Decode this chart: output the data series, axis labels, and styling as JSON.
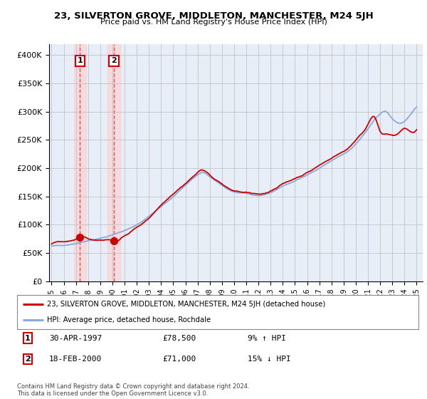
{
  "title": "23, SILVERTON GROVE, MIDDLETON, MANCHESTER, M24 5JH",
  "subtitle": "Price paid vs. HM Land Registry's House Price Index (HPI)",
  "ylabel_ticks": [
    "£0",
    "£50K",
    "£100K",
    "£150K",
    "£200K",
    "£250K",
    "£300K",
    "£350K",
    "£400K"
  ],
  "ytick_values": [
    0,
    50000,
    100000,
    150000,
    200000,
    250000,
    300000,
    350000,
    400000
  ],
  "ylim": [
    0,
    420000
  ],
  "xlim_start": 1994.8,
  "xlim_end": 2025.5,
  "grid_color": "#bbbbbb",
  "bg_color": "#ffffff",
  "plot_bg": "#e8eef8",
  "red_line_color": "#cc0000",
  "blue_line_color": "#88aadd",
  "sale1_x": 1997.33,
  "sale1_y": 78500,
  "sale2_x": 2000.12,
  "sale2_y": 71000,
  "marker_color": "#cc0000",
  "dashed_line_color": "#ee3333",
  "shade_color": "#ffcccc",
  "legend_line1": "23, SILVERTON GROVE, MIDDLETON, MANCHESTER, M24 5JH (detached house)",
  "legend_line2": "HPI: Average price, detached house, Rochdale",
  "table_row1": [
    "1",
    "30-APR-1997",
    "£78,500",
    "9% ↑ HPI"
  ],
  "table_row2": [
    "2",
    "18-FEB-2000",
    "£71,000",
    "15% ↓ HPI"
  ],
  "footer": "Contains HM Land Registry data © Crown copyright and database right 2024.\nThis data is licensed under the Open Government Licence v3.0.",
  "xtick_years": [
    1995,
    1996,
    1997,
    1998,
    1999,
    2000,
    2001,
    2002,
    2003,
    2004,
    2005,
    2006,
    2007,
    2008,
    2009,
    2010,
    2011,
    2012,
    2013,
    2014,
    2015,
    2016,
    2017,
    2018,
    2019,
    2020,
    2021,
    2022,
    2023,
    2024,
    2025
  ],
  "hpi_anchors_x": [
    1995,
    1996,
    1997,
    1998,
    1999,
    2000,
    2001,
    2002,
    2003,
    2004,
    2005,
    2006,
    2007,
    2007.5,
    2008,
    2009,
    2009.5,
    2010,
    2011,
    2012,
    2013,
    2014,
    2015,
    2016,
    2017,
    2018,
    2019,
    2019.5,
    2020,
    2021,
    2021.5,
    2022,
    2022.5,
    2023,
    2023.5,
    2024,
    2024.5,
    2025
  ],
  "hpi_anchors_y": [
    62000,
    64000,
    67000,
    72000,
    76000,
    82000,
    90000,
    100000,
    115000,
    132000,
    150000,
    170000,
    188000,
    192000,
    185000,
    170000,
    163000,
    158000,
    155000,
    152000,
    157000,
    168000,
    178000,
    188000,
    200000,
    213000,
    225000,
    232000,
    243000,
    270000,
    285000,
    296000,
    300000,
    287000,
    280000,
    283000,
    295000,
    308000
  ],
  "red_anchors_x": [
    1995,
    1996,
    1997,
    1997.33,
    1998,
    1999,
    2000,
    2000.12,
    2001,
    2002,
    2003,
    2004,
    2005,
    2006,
    2007,
    2007.5,
    2008,
    2009,
    2009.5,
    2010,
    2011,
    2012,
    2013,
    2014,
    2015,
    2016,
    2017,
    2018,
    2019,
    2019.5,
    2020,
    2021,
    2021.5,
    2022,
    2022.5,
    2023,
    2023.5,
    2024,
    2024.5,
    2025
  ],
  "red_anchors_y": [
    67000,
    70000,
    74000,
    78500,
    76000,
    73000,
    72000,
    71000,
    80000,
    95000,
    112000,
    135000,
    155000,
    173000,
    192000,
    197000,
    188000,
    172000,
    165000,
    160000,
    157000,
    154000,
    160000,
    172000,
    182000,
    192000,
    205000,
    218000,
    230000,
    238000,
    250000,
    278000,
    292000,
    265000,
    260000,
    258000,
    262000,
    270000,
    265000,
    268000
  ]
}
